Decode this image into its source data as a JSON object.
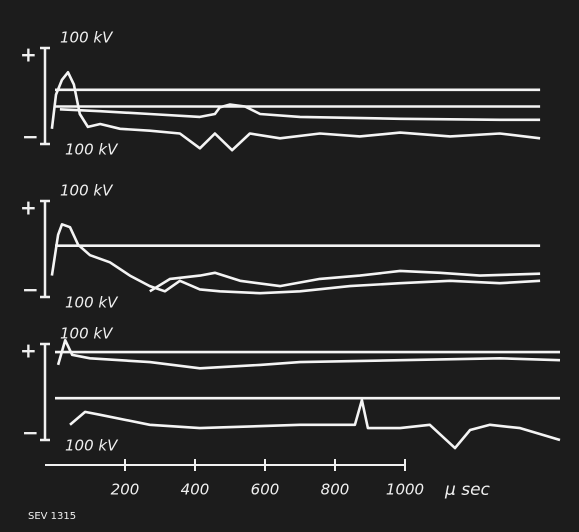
{
  "chart_data": [
    {
      "type": "line",
      "plus": "+",
      "minus": "−",
      "top_label": "100 kV",
      "bottom_label": "100 kV",
      "ylim": [
        -120,
        120
      ],
      "series": [
        {
          "color": "#f4f4f4",
          "x": [
            0,
            1386
          ],
          "values": [
            13,
            13
          ]
        },
        {
          "color": "#f4f4f4",
          "x": [
            0,
            1386
          ],
          "values": [
            -22,
            -22
          ]
        },
        {
          "color": "#f4f4f4",
          "x": [
            -9,
            3,
            20,
            37,
            54,
            71,
            94,
            129,
            186,
            271,
            357,
            414,
            457,
            506,
            557,
            643,
            757,
            871,
            986,
            1129,
            1271,
            1386
          ],
          "values": [
            -69,
            3,
            34,
            50,
            24,
            -38,
            -65,
            -59,
            -69,
            -73,
            -79,
            -110,
            -79,
            -114,
            -79,
            -89,
            -79,
            -85,
            -77,
            -85,
            -79,
            -89
          ]
        },
        {
          "color": "#f4f4f4",
          "x": [
            14,
            129,
            271,
            414,
            457,
            471,
            500,
            543,
            586,
            700,
            986,
            1271,
            1386
          ],
          "values": [
            -28,
            -32,
            -38,
            -44,
            -38,
            -24,
            -18,
            -22,
            -38,
            -44,
            -48,
            -50,
            -50
          ]
        }
      ]
    },
    {
      "type": "line",
      "plus": "+",
      "minus": "−",
      "top_label": "100 kV",
      "bottom_label": "100 kV",
      "ylim": [
        -120,
        120
      ],
      "series": [
        {
          "color": "#f4f4f4",
          "x": [
            0,
            1386
          ],
          "values": [
            7,
            7
          ]
        },
        {
          "color": "#f4f4f4",
          "x": [
            -9,
            9,
            20,
            43,
            66,
            100,
            157,
            214,
            271,
            314,
            357,
            414,
            471,
            586,
            700,
            843,
            986,
            1129,
            1271,
            1386
          ],
          "values": [
            -56,
            30,
            52,
            46,
            9,
            -13,
            -28,
            -56,
            -78,
            -89,
            -67,
            -85,
            -89,
            -93,
            -89,
            -78,
            -72,
            -67,
            -72,
            -67
          ]
        },
        {
          "color": "#f4f4f4",
          "x": [
            271,
            329,
            414,
            457,
            529,
            643,
            757,
            871,
            986,
            1100,
            1214,
            1386
          ],
          "values": [
            -89,
            -63,
            -56,
            -50,
            -67,
            -78,
            -63,
            -56,
            -46,
            -50,
            -56,
            -52
          ]
        }
      ]
    },
    {
      "type": "line",
      "plus": "+",
      "minus": "−",
      "top_label": "100 kV",
      "bottom_label": "100 kV",
      "ylim": [
        -120,
        120
      ],
      "xlim": [
        -20,
        1450
      ],
      "xticks": [
        200,
        400,
        600,
        800,
        1000
      ],
      "xlabel": "μ sec",
      "series": [
        {
          "color": "#f4f4f4",
          "x": [
            0,
            1443
          ],
          "values": [
            84,
            84
          ]
        },
        {
          "color": "#f4f4f4",
          "x": [
            0,
            1443
          ],
          "values": [
            -13,
            -13
          ]
        },
        {
          "color": "#f4f4f4",
          "x": [
            9,
            29,
            49,
            100,
            271,
            414,
            586,
            700,
            986,
            1271,
            1443
          ],
          "values": [
            57,
            109,
            78,
            71,
            63,
            50,
            57,
            63,
            67,
            71,
            67
          ]
        },
        {
          "color": "#f4f4f4",
          "x": [
            43,
            86,
            129,
            271,
            414,
            700,
            857,
            877,
            894,
            986,
            1071,
            1143,
            1186,
            1243,
            1329,
            1443
          ],
          "values": [
            -69,
            -42,
            -48,
            -69,
            -76,
            -69,
            -69,
            -17,
            -76,
            -76,
            -69,
            -118,
            -80,
            -69,
            -76,
            -101
          ]
        }
      ]
    }
  ],
  "caption": "SEV 1315"
}
